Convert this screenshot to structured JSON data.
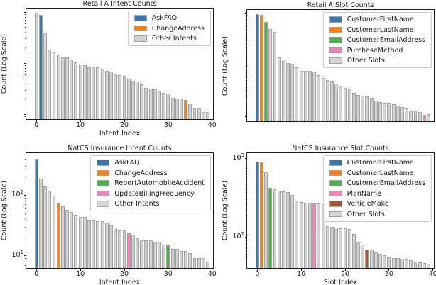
{
  "palette": {
    "blue": "#3878b0",
    "orange": "#ff7f0e",
    "green": "#4daf4a",
    "pink": "#f781bf",
    "brown": "#a65628",
    "gray": "#d3d3d3"
  },
  "axis_style": {
    "spine_color": "#1a1a1a",
    "bar_edge_color": "#a3a3a3",
    "text_color": "#1a1a1a"
  },
  "chart_data": [
    {
      "id": "retail-a-intent-counts",
      "type": "bar",
      "title": "Retail A Intent Counts",
      "xlabel": "Intent Index",
      "ylabel": "Count (Log Scale)",
      "yscale": "log",
      "grid": false,
      "legend_position": "upper-right",
      "xlim": [
        -2.3,
        40.2
      ],
      "ylim": [
        8,
        1160
      ],
      "xticks": [
        0,
        10,
        20,
        30,
        40
      ],
      "show_xticks": true,
      "ytick_label_exponents": [],
      "bar_width": 0.8,
      "values": [
        950,
        880,
        390,
        180,
        160,
        145,
        130,
        127,
        116,
        103,
        92,
        89,
        82,
        82,
        82,
        77,
        71,
        68,
        59,
        58,
        56,
        49,
        45,
        44,
        38,
        33,
        32,
        31,
        29,
        26,
        25,
        21,
        20,
        20,
        19,
        16,
        13,
        13,
        11,
        11
      ],
      "highlights": [
        {
          "index": 1,
          "color": "blue",
          "label": "AskFAQ"
        },
        {
          "index": 34,
          "color": "orange",
          "label": "ChangeAddress"
        }
      ],
      "legend": [
        {
          "label": "AskFAQ",
          "color": "blue"
        },
        {
          "label": "ChangeAddress",
          "color": "orange"
        },
        {
          "label": "Other Intents",
          "color": "gray"
        }
      ]
    },
    {
      "id": "retail-a-slot-counts",
      "type": "bar",
      "title": "Retail A Slot Counts",
      "xlabel": "",
      "ylabel": "Count (Log Scale)",
      "yscale": "log",
      "grid": false,
      "legend_position": "upper-right",
      "xlim": [
        -2.3,
        40.2
      ],
      "ylim": [
        8,
        1160
      ],
      "xticks": [
        0,
        10,
        20,
        30,
        40
      ],
      "show_xticks": false,
      "ytick_label_exponents": [],
      "bar_width": 0.8,
      "values": [
        950,
        930,
        670,
        490,
        440,
        140,
        120,
        109,
        103,
        90,
        77,
        76,
        75,
        74,
        62,
        56,
        51,
        48,
        43,
        39,
        35,
        33,
        28,
        26,
        25,
        24,
        23,
        20,
        19,
        18,
        18,
        17,
        16,
        15,
        14,
        13,
        13,
        12,
        10.5,
        11
      ],
      "highlights": [
        {
          "index": 0,
          "color": "blue",
          "label": "CustomerFirstName"
        },
        {
          "index": 1,
          "color": "orange",
          "label": "CustomerLastName"
        },
        {
          "index": 2,
          "color": "green",
          "label": "CustomerEmailAddress"
        },
        {
          "index": 38,
          "color": "pink",
          "label": "PurchaseMethod"
        }
      ],
      "legend": [
        {
          "label": "CustomerFirstName",
          "color": "blue"
        },
        {
          "label": "CustomerLastName",
          "color": "orange"
        },
        {
          "label": "CustomerEmailAddress",
          "color": "green"
        },
        {
          "label": "PurchaseMethod",
          "color": "pink"
        },
        {
          "label": "Other Slots",
          "color": "gray"
        }
      ]
    },
    {
      "id": "natcs-insurance-intent-counts",
      "type": "bar",
      "title": "NatCS Insurance Intent Counts",
      "xlabel": "Intent Index",
      "ylabel": "Count (Log Scale)",
      "yscale": "log",
      "grid": false,
      "legend_position": "upper-right",
      "xlim": [
        -2.3,
        40.2
      ],
      "ylim": [
        6.2,
        490
      ],
      "xticks": [
        0,
        10,
        20,
        30,
        40
      ],
      "show_xticks": true,
      "ytick_label_exponents": [
        2,
        1
      ],
      "bar_width": 0.8,
      "values": [
        400,
        185,
        137,
        117,
        93,
        72,
        64,
        56,
        52,
        47,
        43,
        43,
        38,
        38,
        37,
        37,
        35,
        31,
        29,
        26,
        26,
        23,
        22,
        19,
        18,
        18,
        18,
        17,
        17,
        15,
        15,
        13,
        13,
        12,
        12,
        11,
        9,
        9,
        9,
        8
      ],
      "highlights": [
        {
          "index": 0,
          "color": "blue",
          "label": "AskFAQ"
        },
        {
          "index": 5,
          "color": "orange",
          "label": "ChangeAddress"
        },
        {
          "index": 21,
          "color": "pink",
          "label": "UpdateBillingFrequency"
        },
        {
          "index": 30,
          "color": "green",
          "label": "ReportAutomobileAccident"
        }
      ],
      "legend": [
        {
          "label": "AskFAQ",
          "color": "blue"
        },
        {
          "label": "ChangeAddress",
          "color": "orange"
        },
        {
          "label": "ReportAutomobileAccident",
          "color": "green"
        },
        {
          "label": "UpdateBillingFrequency",
          "color": "pink"
        },
        {
          "label": "Other Intents",
          "color": "gray"
        }
      ]
    },
    {
      "id": "natcs-insurance-slot-counts",
      "type": "bar",
      "title": "NatCS Insurance Slot Counts",
      "xlabel": "Slot Index",
      "ylabel": "Count (Log Scale)",
      "yscale": "log",
      "grid": false,
      "legend_position": "upper-right",
      "xlim": [
        -2.3,
        40.2
      ],
      "ylim": [
        40,
        1150
      ],
      "xticks": [
        0,
        10,
        20,
        30,
        40
      ],
      "show_xticks": true,
      "ytick_label_exponents": [
        3,
        2
      ],
      "bar_width": 0.8,
      "values": [
        890,
        880,
        660,
        420,
        400,
        380,
        375,
        365,
        340,
        285,
        278,
        272,
        267,
        263,
        262,
        258,
        135,
        133,
        131,
        129,
        127,
        125,
        109,
        84,
        79,
        69,
        68,
        63,
        61,
        58,
        55,
        54,
        53,
        52,
        51,
        50,
        48,
        47,
        46,
        45
      ],
      "highlights": [
        {
          "index": 0,
          "color": "blue",
          "label": "CustomerFirstName"
        },
        {
          "index": 1,
          "color": "orange",
          "label": "CustomerLastName"
        },
        {
          "index": 3,
          "color": "green",
          "label": "CustomerEmailAddress"
        },
        {
          "index": 13,
          "color": "pink",
          "label": "PlanName"
        },
        {
          "index": 25,
          "color": "brown",
          "label": "VehicleMake"
        }
      ],
      "legend": [
        {
          "label": "CustomerFirstName",
          "color": "blue"
        },
        {
          "label": "CustomerLastName",
          "color": "orange"
        },
        {
          "label": "CustomerEmailAddress",
          "color": "green"
        },
        {
          "label": "PlanName",
          "color": "pink"
        },
        {
          "label": "VehicleMake",
          "color": "brown"
        },
        {
          "label": "Other Slots",
          "color": "gray"
        }
      ]
    }
  ]
}
